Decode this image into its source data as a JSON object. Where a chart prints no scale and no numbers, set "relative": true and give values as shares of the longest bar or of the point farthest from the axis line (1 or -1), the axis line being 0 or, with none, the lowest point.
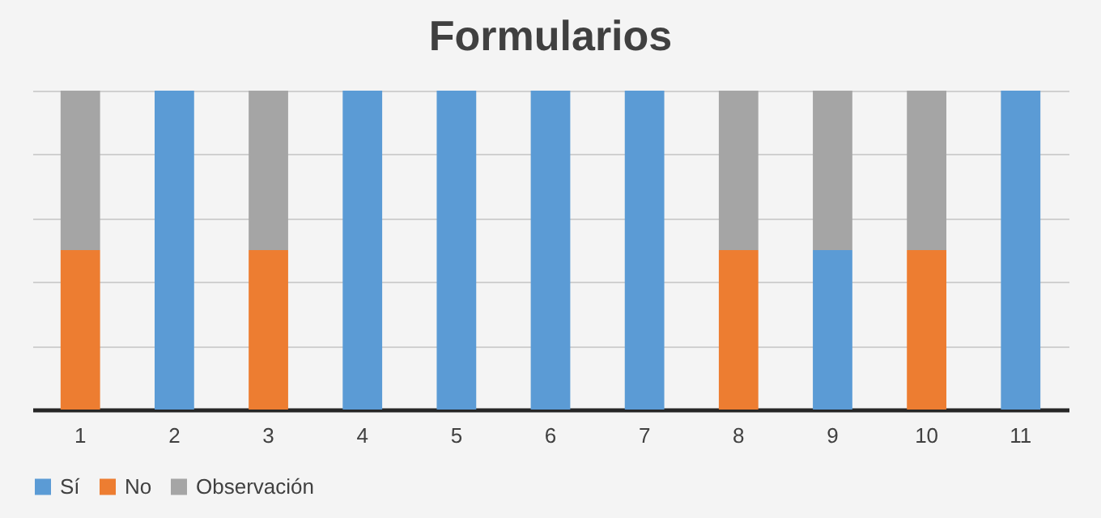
{
  "chart_data": {
    "type": "bar",
    "title": "Formularios",
    "categories": [
      "1",
      "2",
      "3",
      "4",
      "5",
      "6",
      "7",
      "8",
      "9",
      "10",
      "11"
    ],
    "relative": true,
    "stacked": true,
    "grid": "y",
    "legend": "bottom",
    "series": [
      {
        "name": "Sí",
        "color": "#5b9bd5",
        "values": [
          null,
          1,
          null,
          1,
          1,
          1,
          1,
          null,
          0.5,
          null,
          1
        ]
      },
      {
        "name": "No",
        "color": "#ed7d31",
        "values": [
          0.5,
          null,
          0.5,
          null,
          null,
          null,
          null,
          0.5,
          null,
          0.5,
          null
        ]
      },
      {
        "name": "Observación",
        "color": "#a5a5a5",
        "values": [
          0.5,
          null,
          0.5,
          null,
          null,
          null,
          null,
          0.5,
          0.5,
          0.5,
          null
        ]
      }
    ]
  }
}
